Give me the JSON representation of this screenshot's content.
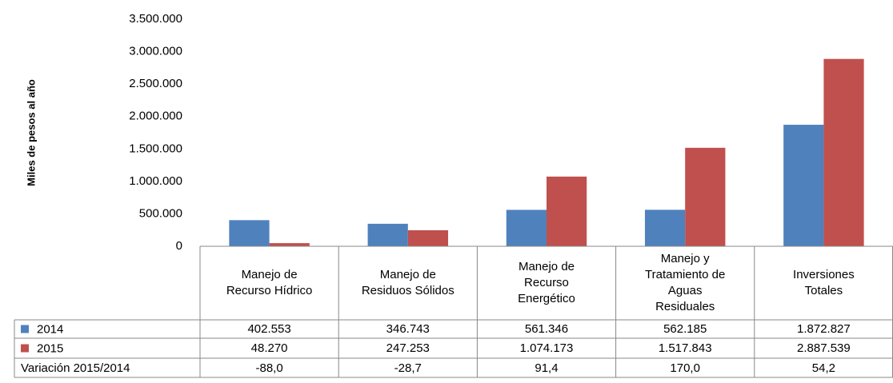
{
  "chart_data": {
    "type": "bar",
    "y_label": "Miles de pesos al año",
    "categories": [
      "Manejo de Recurso Hídrico",
      "Manejo de Residuos Sólidos",
      "Manejo de Recurso Energético",
      "Manejo y Tratamiento de Aguas Residuales",
      "Inversiones Totales"
    ],
    "series": [
      {
        "name": "2014",
        "color": "#4f81bd",
        "values": [
          402553,
          346743,
          561346,
          562185,
          1872827
        ],
        "value_labels": [
          "402.553",
          "346.743",
          "561.346",
          "562.185",
          "1.872.827"
        ]
      },
      {
        "name": "2015",
        "color": "#c0504d",
        "values": [
          48270,
          247253,
          1074173,
          1517843,
          2887539
        ],
        "value_labels": [
          "48.270",
          "247.253",
          "1.074.173",
          "1.517.843",
          "2.887.539"
        ]
      }
    ],
    "variation": {
      "name": "Variación 2015/2014",
      "values": [
        -88.0,
        -28.7,
        91.4,
        170.0,
        54.2
      ],
      "value_labels": [
        "-88,0",
        "-28,7",
        "91,4",
        "170,0",
        "54,2"
      ]
    },
    "ylim": [
      0,
      3500000
    ],
    "yticks": [
      0,
      {
        "value": 500000,
        "label": "500.000"
      },
      {
        "value": 1000000,
        "label": "1.000.000"
      },
      {
        "value": 1500000,
        "label": "1.500.000"
      },
      {
        "value": 2000000,
        "label": "2.000.000"
      },
      {
        "value": 2500000,
        "label": "2.500.000"
      },
      {
        "value": 3000000,
        "label": "3.000.000"
      },
      {
        "value": 3500000,
        "label": "3.500.000"
      }
    ],
    "grid": false
  }
}
